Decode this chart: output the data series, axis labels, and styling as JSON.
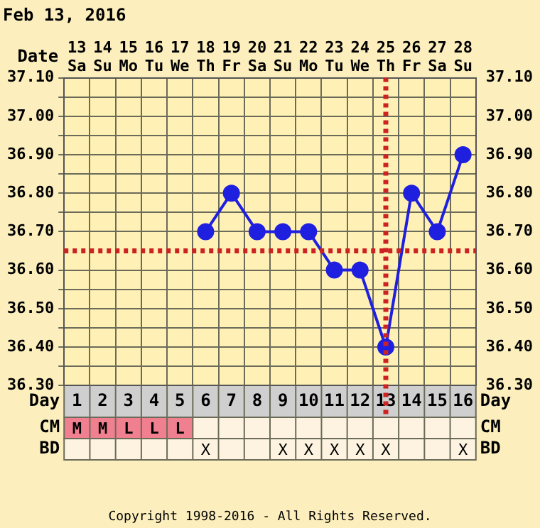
{
  "chart_data": {
    "type": "line",
    "title": "Feb 13, 2016",
    "xlabel": "Date",
    "x2label": "Day",
    "categories": [
      "13 Sa",
      "14 Su",
      "15 Mo",
      "16 Tu",
      "17 We",
      "18 Th",
      "19 Fr",
      "20 Sa",
      "21 Su",
      "22 Mo",
      "23 Tu",
      "24 We",
      "25 Th",
      "26 Fr",
      "27 Sa",
      "28 Su"
    ],
    "series": [
      {
        "color": "#1f1fe0",
        "values": [
          null,
          null,
          null,
          null,
          null,
          36.7,
          36.8,
          36.7,
          36.7,
          36.7,
          36.6,
          36.6,
          36.4,
          36.8,
          36.7,
          36.9
        ]
      }
    ],
    "ylim": [
      36.3,
      37.1
    ],
    "yticks": [
      {
        "value": 36.3,
        "label": "36.30"
      },
      {
        "value": 36.35,
        "label": null
      },
      {
        "value": 36.4,
        "label": "36.40"
      },
      {
        "value": 36.45,
        "label": null
      },
      {
        "value": 36.5,
        "label": "36.50"
      },
      {
        "value": 36.55,
        "label": null
      },
      {
        "value": 36.6,
        "label": "36.60"
      },
      {
        "value": 36.7,
        "label": "36.70"
      },
      {
        "value": 36.75,
        "label": null
      },
      {
        "value": 36.8,
        "label": "36.80"
      },
      {
        "value": 36.85,
        "label": null
      },
      {
        "value": 36.9,
        "label": "36.90"
      },
      {
        "value": 36.95,
        "label": null
      },
      {
        "value": 37.0,
        "label": "37.00"
      },
      {
        "value": 37.05,
        "label": null
      },
      {
        "value": 37.1,
        "label": "37.10"
      }
    ],
    "y2lim": [
      36.3,
      37.1
    ],
    "y2ticks": [
      {
        "value": 36.3,
        "label": "36.30"
      },
      {
        "value": 36.35,
        "label": null
      },
      {
        "value": 36.4,
        "label": "36.40"
      },
      {
        "value": 36.45,
        "label": null
      },
      {
        "value": 36.5,
        "label": "36.50"
      },
      {
        "value": 36.55,
        "label": null
      },
      {
        "value": 36.6,
        "label": "36.60"
      },
      {
        "value": 36.7,
        "label": "36.70"
      },
      {
        "value": 36.75,
        "label": null
      },
      {
        "value": 36.8,
        "label": "36.80"
      },
      {
        "value": 36.85,
        "label": null
      },
      {
        "value": 36.9,
        "label": "36.90"
      },
      {
        "value": 36.95,
        "label": null
      },
      {
        "value": 37.0,
        "label": "37.00"
      },
      {
        "value": 37.05,
        "label": null
      },
      {
        "value": 37.1,
        "label": "37.10"
      }
    ],
    "x2lim": [
      0.5,
      16.5
    ],
    "x2ticks": [
      1,
      2,
      3,
      4,
      5,
      6,
      7,
      8,
      9,
      10,
      11,
      12,
      13,
      14,
      15,
      16
    ],
    "ref_lines": [
      {
        "axis": "y",
        "value": 36.65,
        "color": "#cc2222",
        "line_style": "dotted"
      },
      {
        "axis": "x",
        "value": "25 Th",
        "color": "#cc2222",
        "line_style": "dotted"
      }
    ],
    "annotations": [
      "CM",
      "M",
      "M",
      "L",
      "L",
      "L",
      null,
      null,
      null,
      null,
      null,
      null,
      null,
      null,
      null,
      null,
      null,
      "BD",
      null,
      null,
      null,
      null,
      null,
      "X",
      null,
      null,
      "X",
      "X",
      "X",
      "X",
      "X",
      null,
      null,
      "X",
      "Copyright 1998-2016 - All Rights Reserved."
    ],
    "grid": true,
    "legend": false,
    "marker": "circle",
    "line_style": "solid"
  }
}
